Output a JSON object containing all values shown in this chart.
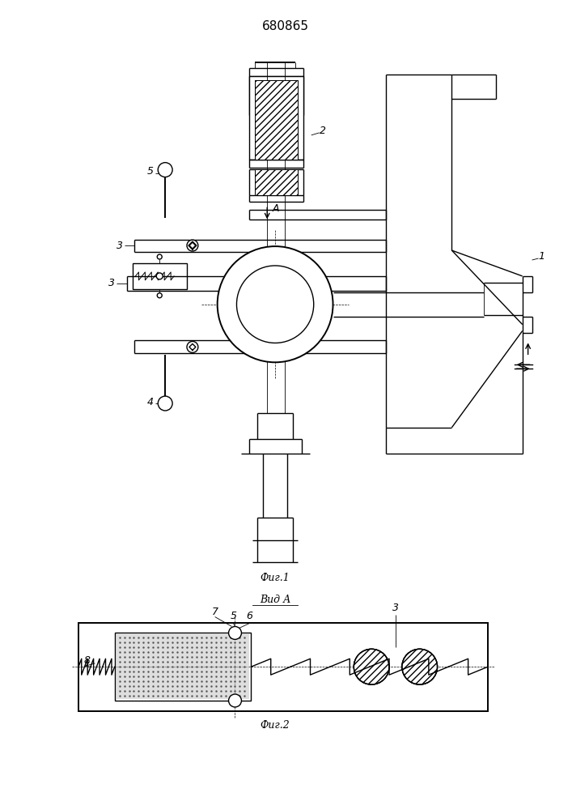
{
  "title": "680865",
  "fig1_label": "Фиг.1",
  "fig2_label": "Фиг.2",
  "view_label": "Вид А",
  "background": "#ffffff",
  "line_color": "#000000"
}
